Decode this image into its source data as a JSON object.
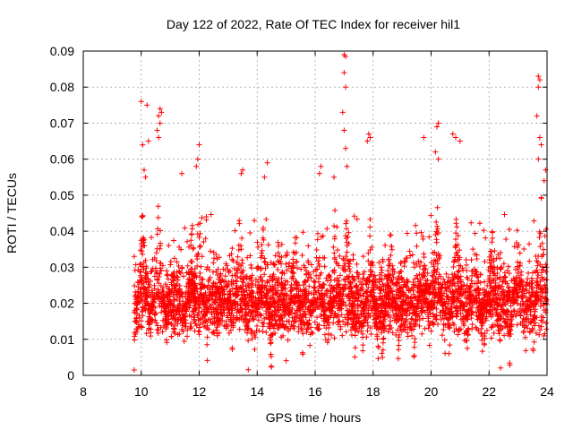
{
  "chart_data": {
    "type": "scatter",
    "title": "Day 122 of 2022, Rate Of TEC Index for receiver hil1",
    "xlabel": "GPS time / hours",
    "ylabel": "ROTI / TECUs",
    "xlim": [
      8,
      24
    ],
    "ylim": [
      0,
      0.09
    ],
    "xticks": [
      "8",
      "10",
      "12",
      "14",
      "16",
      "18",
      "20",
      "22",
      "24"
    ],
    "yticks": [
      "0",
      "0.01",
      "0.02",
      "0.03",
      "0.04",
      "0.05",
      "0.06",
      "0.07",
      "0.08",
      "0.09"
    ],
    "grid": true,
    "marker": "+",
    "color": "#ff0000",
    "series": [
      {
        "name": "ROTI",
        "x_range": [
          9.75,
          24
        ],
        "baseline_range": [
          0.005,
          0.03
        ],
        "notable_points": [
          {
            "x": 17.0,
            "y": 0.089
          },
          {
            "x": 17.05,
            "y": 0.0885
          },
          {
            "x": 17.0,
            "y": 0.084
          },
          {
            "x": 17.05,
            "y": 0.08
          },
          {
            "x": 16.95,
            "y": 0.073
          },
          {
            "x": 17.0,
            "y": 0.068
          },
          {
            "x": 17.05,
            "y": 0.063
          },
          {
            "x": 17.1,
            "y": 0.058
          },
          {
            "x": 23.7,
            "y": 0.083
          },
          {
            "x": 23.75,
            "y": 0.082
          },
          {
            "x": 23.7,
            "y": 0.08
          },
          {
            "x": 23.65,
            "y": 0.072
          },
          {
            "x": 23.75,
            "y": 0.066
          },
          {
            "x": 23.8,
            "y": 0.064
          },
          {
            "x": 23.7,
            "y": 0.06
          },
          {
            "x": 10.0,
            "y": 0.076
          },
          {
            "x": 10.2,
            "y": 0.075
          },
          {
            "x": 10.65,
            "y": 0.074
          },
          {
            "x": 10.7,
            "y": 0.073
          },
          {
            "x": 10.6,
            "y": 0.072
          },
          {
            "x": 10.65,
            "y": 0.07
          },
          {
            "x": 10.55,
            "y": 0.068
          },
          {
            "x": 10.6,
            "y": 0.066
          },
          {
            "x": 10.25,
            "y": 0.065
          },
          {
            "x": 10.05,
            "y": 0.064
          },
          {
            "x": 10.1,
            "y": 0.057
          },
          {
            "x": 10.15,
            "y": 0.055
          },
          {
            "x": 20.25,
            "y": 0.07
          },
          {
            "x": 20.2,
            "y": 0.069
          },
          {
            "x": 19.75,
            "y": 0.066
          },
          {
            "x": 20.75,
            "y": 0.067
          },
          {
            "x": 20.85,
            "y": 0.066
          },
          {
            "x": 21.0,
            "y": 0.065
          },
          {
            "x": 17.85,
            "y": 0.067
          },
          {
            "x": 17.9,
            "y": 0.066
          },
          {
            "x": 17.8,
            "y": 0.065
          },
          {
            "x": 12.0,
            "y": 0.064
          },
          {
            "x": 11.95,
            "y": 0.06
          },
          {
            "x": 11.9,
            "y": 0.058
          },
          {
            "x": 13.5,
            "y": 0.057
          },
          {
            "x": 13.45,
            "y": 0.056
          },
          {
            "x": 14.35,
            "y": 0.059
          },
          {
            "x": 14.25,
            "y": 0.055
          },
          {
            "x": 11.4,
            "y": 0.056
          },
          {
            "x": 16.2,
            "y": 0.058
          },
          {
            "x": 16.15,
            "y": 0.056
          },
          {
            "x": 16.65,
            "y": 0.055
          },
          {
            "x": 20.15,
            "y": 0.062
          },
          {
            "x": 20.25,
            "y": 0.06
          },
          {
            "x": 23.95,
            "y": 0.057
          },
          {
            "x": 23.9,
            "y": 0.054
          }
        ]
      }
    ]
  }
}
